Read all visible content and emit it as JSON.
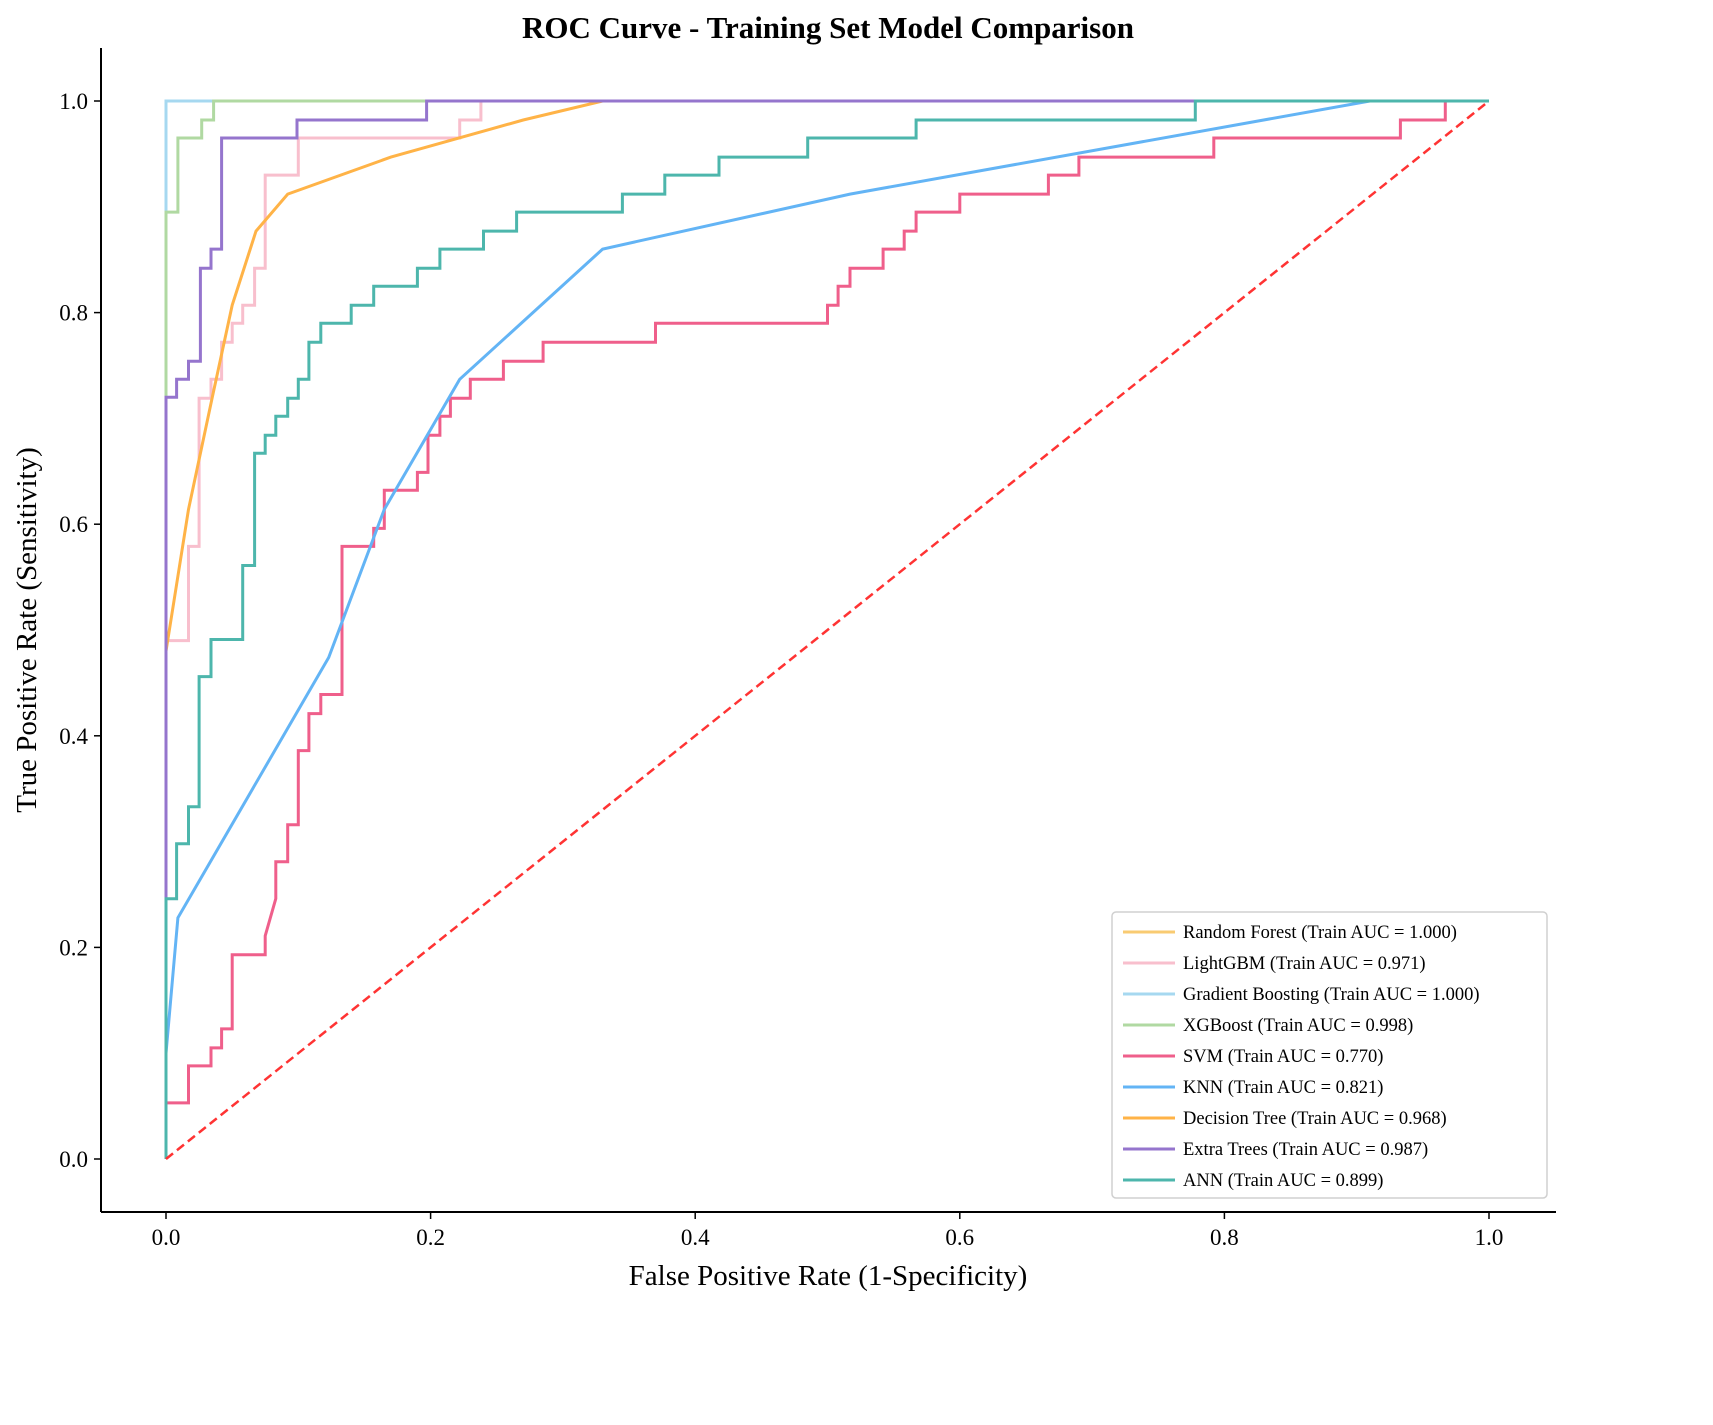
{
  "chart_data": {
    "type": "line",
    "title": "ROC Curve - Training Set Model Comparison",
    "xlabel": "False Positive Rate (1-Specificity)",
    "ylabel": "True Positive Rate (Sensitivity)",
    "xlim": [
      -0.05,
      1.05
    ],
    "ylim": [
      -0.05,
      1.05
    ],
    "xticks": [
      "0.0",
      "0.2",
      "0.4",
      "0.6",
      "0.8",
      "1.0"
    ],
    "yticks": [
      "0.0",
      "0.2",
      "0.4",
      "0.6",
      "0.8",
      "1.0"
    ],
    "grid": false,
    "legend_position": "bottom-right",
    "reference_line": {
      "name": "Random",
      "color": "#ff3333",
      "style": "dashed",
      "x": [
        0,
        1
      ],
      "y": [
        0,
        1
      ]
    },
    "series": [
      {
        "name": "Random Forest (Train AUC = 1.000)",
        "color": "#f9cb72",
        "x": [
          0,
          0,
          1
        ],
        "y": [
          0,
          1,
          1
        ]
      },
      {
        "name": "LightGBM (Train AUC = 0.971)",
        "color": "#f8bfcd",
        "x": [
          0,
          0,
          0.017,
          0.017,
          0.025,
          0.025,
          0.034,
          0.034,
          0.042,
          0.042,
          0.05,
          0.05,
          0.058,
          0.058,
          0.067,
          0.067,
          0.075,
          0.075,
          0.1,
          0.1,
          0.222,
          0.222,
          0.238,
          0.238,
          1
        ],
        "y": [
          0,
          0.49,
          0.49,
          0.579,
          0.579,
          0.719,
          0.719,
          0.737,
          0.737,
          0.772,
          0.772,
          0.79,
          0.79,
          0.807,
          0.807,
          0.842,
          0.842,
          0.93,
          0.93,
          0.965,
          0.965,
          0.982,
          0.982,
          1,
          1
        ]
      },
      {
        "name": "Gradient Boosting (Train AUC = 1.000)",
        "color": "#a6d8f0",
        "x": [
          0,
          0,
          1
        ],
        "y": [
          0,
          1,
          1
        ]
      },
      {
        "name": "XGBoost (Train AUC = 0.998)",
        "color": "#b0d9a2",
        "x": [
          0,
          0,
          0.009,
          0.009,
          0.027,
          0.027,
          0.036,
          0.036,
          1
        ],
        "y": [
          0,
          0.895,
          0.895,
          0.965,
          0.965,
          0.982,
          0.982,
          1,
          1
        ]
      },
      {
        "name": "SVM (Train AUC = 0.770)",
        "color": "#ef5f8b",
        "x": [
          0,
          0,
          0.017,
          0.017,
          0.034,
          0.034,
          0.042,
          0.042,
          0.05,
          0.05,
          0.075,
          0.075,
          0.083,
          0.083,
          0.092,
          0.092,
          0.1,
          0.1,
          0.108,
          0.108,
          0.117,
          0.117,
          0.133,
          0.133,
          0.157,
          0.157,
          0.165,
          0.165,
          0.19,
          0.19,
          0.198,
          0.198,
          0.207,
          0.207,
          0.215,
          0.215,
          0.23,
          0.23,
          0.255,
          0.255,
          0.285,
          0.285,
          0.37,
          0.37,
          0.5,
          0.5,
          0.508,
          0.508,
          0.517,
          0.517,
          0.542,
          0.542,
          0.558,
          0.558,
          0.567,
          0.567,
          0.6,
          0.6,
          0.667,
          0.667,
          0.69,
          0.69,
          0.792,
          0.792,
          0.933,
          0.933,
          0.967,
          0.967,
          1
        ],
        "y": [
          0,
          0.053,
          0.053,
          0.088,
          0.088,
          0.105,
          0.105,
          0.123,
          0.123,
          0.193,
          0.193,
          0.211,
          0.246,
          0.281,
          0.281,
          0.316,
          0.316,
          0.386,
          0.386,
          0.421,
          0.421,
          0.439,
          0.439,
          0.579,
          0.579,
          0.596,
          0.596,
          0.632,
          0.632,
          0.649,
          0.649,
          0.684,
          0.684,
          0.702,
          0.702,
          0.719,
          0.719,
          0.737,
          0.737,
          0.754,
          0.754,
          0.772,
          0.772,
          0.79,
          0.79,
          0.807,
          0.807,
          0.825,
          0.825,
          0.842,
          0.842,
          0.86,
          0.86,
          0.877,
          0.877,
          0.895,
          0.895,
          0.912,
          0.912,
          0.93,
          0.93,
          0.947,
          0.947,
          0.965,
          0.965,
          0.982,
          0.982,
          1,
          1
        ]
      },
      {
        "name": "KNN (Train AUC = 0.821)",
        "color": "#63b4f5",
        "x": [
          0,
          0,
          0.009,
          0.123,
          0.165,
          0.222,
          0.33,
          0.517,
          0.91,
          1
        ],
        "y": [
          0,
          0.1,
          0.228,
          0.474,
          0.614,
          0.737,
          0.86,
          0.912,
          1,
          1
        ]
      },
      {
        "name": "Decision Tree (Train AUC = 0.968)",
        "color": "#ffb347",
        "x": [
          0,
          0,
          0.017,
          0.035,
          0.05,
          0.068,
          0.092,
          0.17,
          0.27,
          0.33,
          1
        ],
        "y": [
          0,
          0.48,
          0.614,
          0.72,
          0.807,
          0.877,
          0.912,
          0.947,
          0.982,
          1,
          1
        ]
      },
      {
        "name": "Extra Trees (Train AUC = 0.987)",
        "color": "#9575cd",
        "x": [
          0,
          0,
          0.008,
          0.008,
          0.017,
          0.017,
          0.026,
          0.026,
          0.034,
          0.034,
          0.042,
          0.042,
          0.099,
          0.099,
          0.197,
          0.197,
          1
        ],
        "y": [
          0,
          0.72,
          0.72,
          0.737,
          0.737,
          0.754,
          0.754,
          0.842,
          0.842,
          0.86,
          0.86,
          0.965,
          0.965,
          0.982,
          0.982,
          1,
          1
        ]
      },
      {
        "name": "ANN (Train AUC = 0.899)",
        "color": "#4db6ac",
        "x": [
          0,
          0,
          0.008,
          0.008,
          0.017,
          0.017,
          0.025,
          0.025,
          0.034,
          0.034,
          0.058,
          0.058,
          0.067,
          0.067,
          0.075,
          0.075,
          0.083,
          0.083,
          0.092,
          0.092,
          0.1,
          0.1,
          0.108,
          0.108,
          0.117,
          0.117,
          0.14,
          0.14,
          0.157,
          0.157,
          0.19,
          0.19,
          0.207,
          0.207,
          0.24,
          0.24,
          0.265,
          0.265,
          0.345,
          0.345,
          0.377,
          0.377,
          0.418,
          0.418,
          0.485,
          0.485,
          0.567,
          0.567,
          0.778,
          0.778,
          1
        ],
        "y": [
          0,
          0.246,
          0.246,
          0.298,
          0.298,
          0.333,
          0.333,
          0.456,
          0.456,
          0.491,
          0.491,
          0.561,
          0.561,
          0.667,
          0.667,
          0.684,
          0.684,
          0.702,
          0.702,
          0.719,
          0.719,
          0.737,
          0.737,
          0.772,
          0.772,
          0.79,
          0.79,
          0.807,
          0.807,
          0.825,
          0.825,
          0.842,
          0.842,
          0.86,
          0.86,
          0.877,
          0.877,
          0.895,
          0.895,
          0.912,
          0.912,
          0.93,
          0.93,
          0.947,
          0.947,
          0.965,
          0.965,
          0.982,
          0.982,
          1,
          1
        ]
      }
    ]
  }
}
